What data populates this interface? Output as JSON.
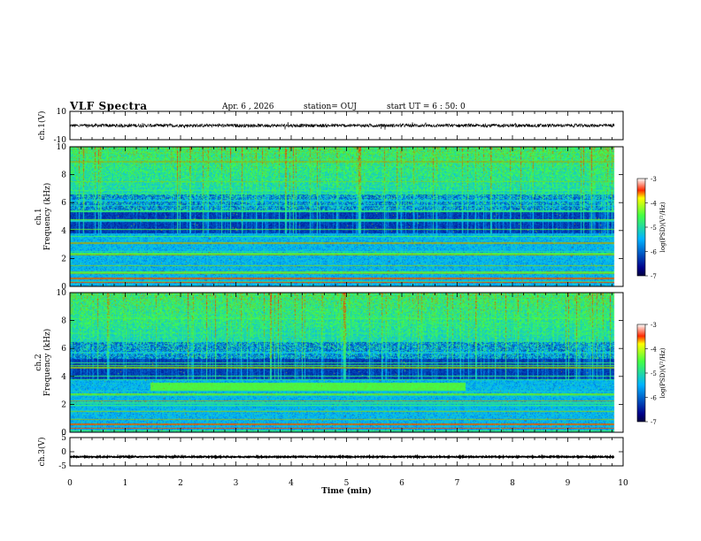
{
  "header": {
    "title": "VLF Spectra",
    "date": "Apr. 6 , 2026",
    "station": "station= OUJ",
    "start_time": "start UT =  6 : 50: 0"
  },
  "colors": {
    "low": "#00008a",
    "mid": "#00b4ff",
    "high": "#44ff44",
    "peak": "#ff2a00"
  },
  "chart_data": [
    {
      "type": "line",
      "name": "ch1-waveform",
      "ylabel": "ch.1(V)",
      "ylim": [
        -10,
        10
      ],
      "yticks": [
        "10",
        "-10"
      ],
      "x_range": [
        0,
        9.85
      ],
      "baseline": 0,
      "noise_amplitude": 2
    },
    {
      "type": "heatmap",
      "name": "ch1-spectrogram",
      "ylabel_line1": "ch.1",
      "ylabel_line2": "Frequency (kHz)",
      "ylim": [
        0,
        10
      ],
      "yticks": [
        "10",
        "8",
        "6",
        "4",
        "2",
        "0"
      ],
      "x_range": [
        0,
        9.85
      ],
      "colorbar": {
        "label": "log(PSD)(V²/Hz)",
        "range": [
          -7,
          -3
        ],
        "ticks": [
          "-3",
          "-4",
          "-5",
          "-6",
          "-7"
        ]
      },
      "noise_floor_khz": 5.5,
      "emission_band_khz": null
    },
    {
      "type": "heatmap",
      "name": "ch2-spectrogram",
      "ylabel_line1": "ch.2",
      "ylabel_line2": "Frequency (kHz)",
      "ylim": [
        0,
        10
      ],
      "yticks": [
        "10",
        "8",
        "6",
        "4",
        "2",
        "0"
      ],
      "x_range": [
        0,
        9.85
      ],
      "colorbar": {
        "label": "log(PSD)(V²/Hz)",
        "range": [
          -7,
          -3
        ],
        "ticks": [
          "-3",
          "-4",
          "-5",
          "-6",
          "-7"
        ]
      },
      "noise_floor_khz": 5.3,
      "emission_band_khz": {
        "t_start": 1.45,
        "t_end": 7.15,
        "f_low": 3.0,
        "f_high": 3.6
      }
    },
    {
      "type": "line",
      "name": "ch3-waveform",
      "ylabel": "ch.3(V)",
      "ylim": [
        -5,
        5
      ],
      "yticks": [
        "5",
        "0",
        "-5"
      ],
      "x_range": [
        0,
        9.85
      ],
      "baseline": -1.8,
      "noise_amplitude": 0.2
    }
  ],
  "x_axis": {
    "label": "Time (min)",
    "range": [
      0,
      10
    ],
    "ticks": [
      "0",
      "1",
      "2",
      "3",
      "4",
      "5",
      "6",
      "7",
      "8",
      "9",
      "10"
    ]
  }
}
